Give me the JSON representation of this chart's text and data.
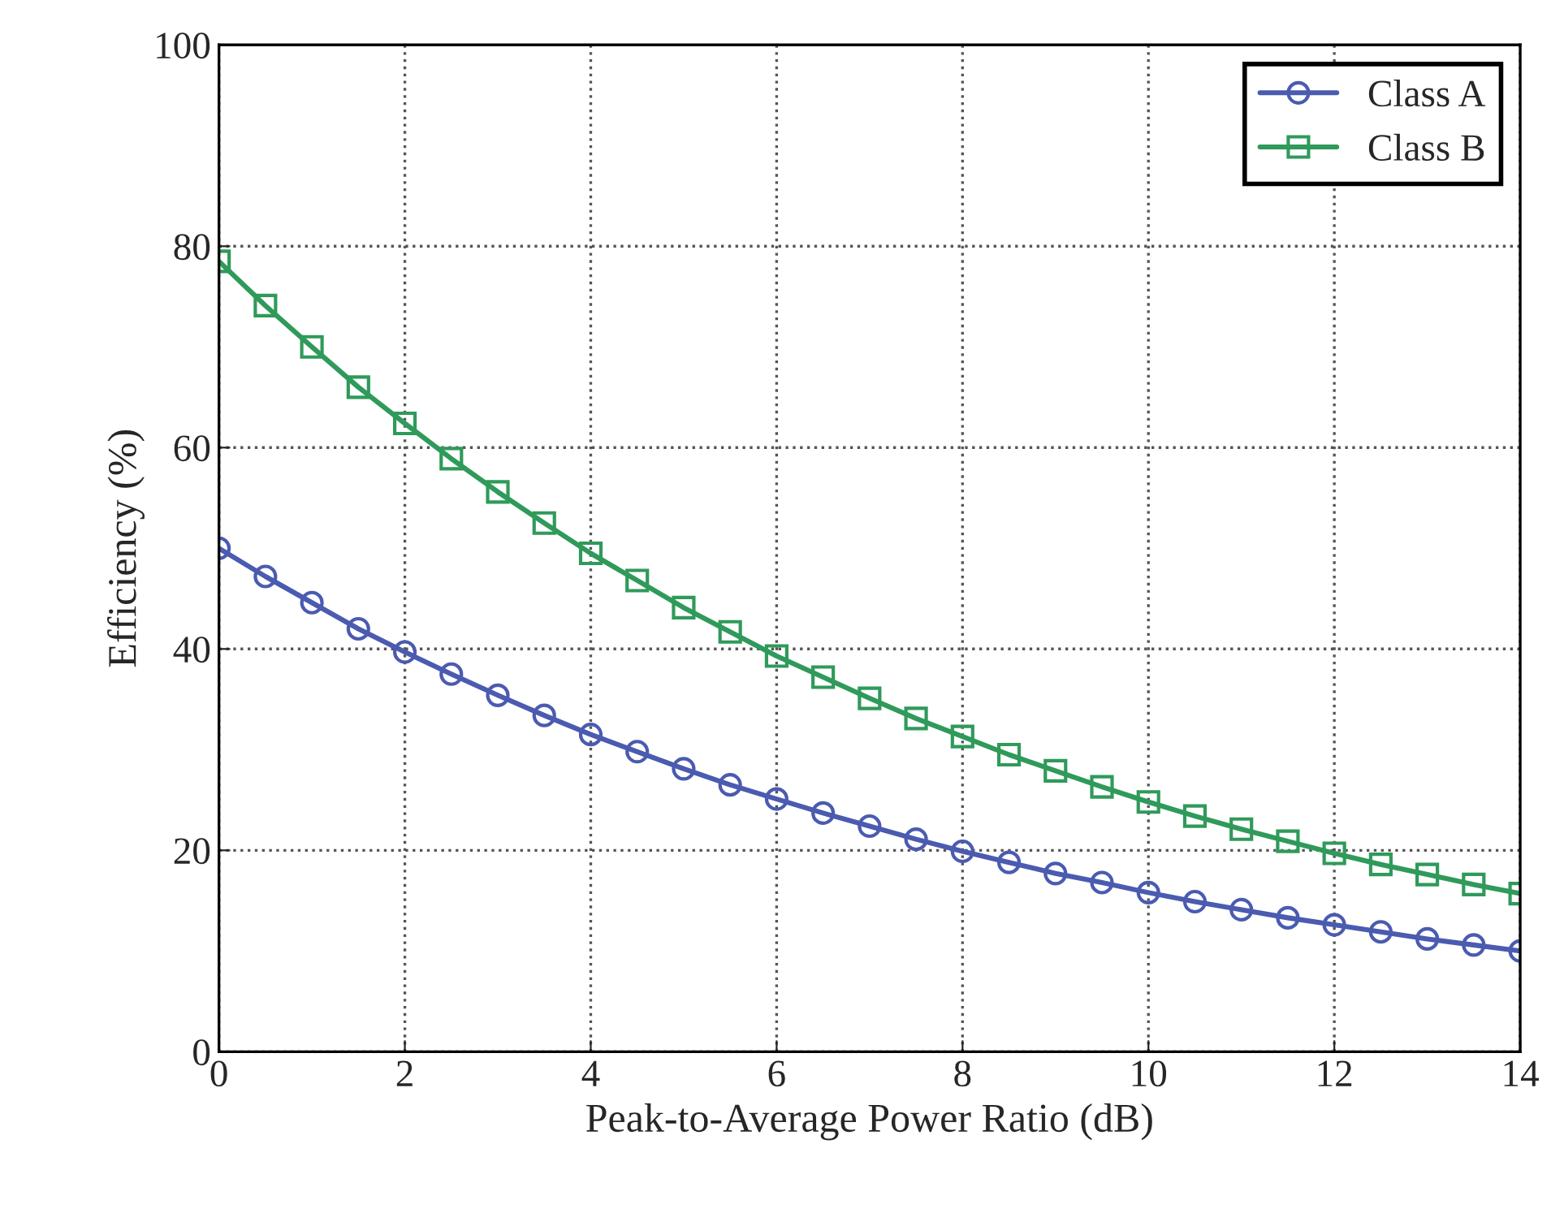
{
  "chart_data": {
    "type": "line",
    "xlabel": "Peak-to-Average Power Ratio (dB)",
    "ylabel": "Efficiency (%)",
    "x": [
      0,
      0.5,
      1,
      1.5,
      2,
      2.5,
      3,
      3.5,
      4,
      4.5,
      5,
      5.5,
      6,
      6.5,
      7,
      7.5,
      8,
      8.5,
      9,
      9.5,
      10,
      10.5,
      11,
      11.5,
      12,
      12.5,
      13,
      13.5,
      14
    ],
    "series": [
      {
        "name": "Class A",
        "color": "#4a5bb0",
        "marker": "circle",
        "values": [
          50,
          47.2,
          44.6,
          42,
          39.7,
          37.5,
          35.4,
          33.4,
          31.5,
          29.8,
          28.1,
          26.5,
          25.1,
          23.7,
          22.4,
          21.1,
          19.9,
          18.8,
          17.7,
          16.8,
          15.8,
          14.9,
          14.1,
          13.3,
          12.6,
          11.9,
          11.2,
          10.6,
          10.0
        ]
      },
      {
        "name": "Class B",
        "color": "#2f9a5a",
        "marker": "square",
        "values": [
          78.5,
          74.1,
          70,
          66,
          62.4,
          58.9,
          55.6,
          52.5,
          49.5,
          46.8,
          44.1,
          41.7,
          39.3,
          37.2,
          35.1,
          33.1,
          31.3,
          29.5,
          27.9,
          26.3,
          24.8,
          23.4,
          22.1,
          20.9,
          19.7,
          18.6,
          17.6,
          16.6,
          15.7
        ]
      }
    ],
    "xlim": [
      0,
      14
    ],
    "xticks": [
      0,
      2,
      4,
      6,
      8,
      10,
      12,
      14
    ],
    "ylim": [
      0,
      100
    ],
    "yticks": [
      0,
      20,
      40,
      60,
      80,
      100
    ],
    "grid": true,
    "legend": "top right",
    "line_style": "solid"
  }
}
